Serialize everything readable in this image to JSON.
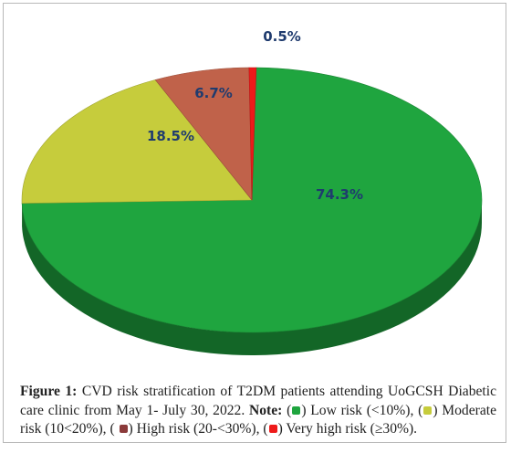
{
  "chart_data": {
    "type": "pie",
    "title": "",
    "slices": [
      {
        "label": "Low risk (<10%)",
        "value": 74.3,
        "display": "74.3%",
        "color": "#1fa53f"
      },
      {
        "label": "Moderate risk (10<20%)",
        "value": 18.5,
        "display": "18.5%",
        "color": "#c6cc3c"
      },
      {
        "label": "High risk (20-<30%)",
        "value": 6.7,
        "display": "6.7%",
        "color": "#c0624a"
      },
      {
        "label": "Very high risk (≥30%)",
        "value": 0.5,
        "display": "0.5%",
        "color": "#ee1a1a"
      }
    ]
  },
  "caption": {
    "figure_label": "Figure 1:",
    "text": "CVD risk stratification of T2DM patients attending UoGCSH Diabetic care clinic from May 1- July 30, 2022.",
    "note_label": "Note:",
    "legend": [
      {
        "open": "(",
        "close": ") Low risk (<10%), ",
        "color": "#1fa53f"
      },
      {
        "open": "(",
        "close": ") Moderate risk (10<20%), ",
        "color": "#c6cc3c"
      },
      {
        "open": "( ",
        "close": ") High risk (20-<30%), ",
        "color": "#8b3a3a"
      },
      {
        "open": "(",
        "close": ") Very high risk (≥30%).",
        "color": "#ee1a1a"
      }
    ]
  }
}
